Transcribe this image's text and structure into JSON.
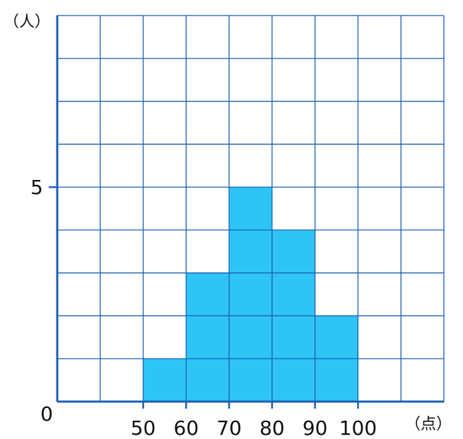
{
  "chart_data": {
    "type": "bar",
    "subtype": "histogram",
    "categories": [
      "50-60",
      "60-70",
      "70-80",
      "80-90",
      "90-100"
    ],
    "bins": [
      [
        50,
        60
      ],
      [
        60,
        70
      ],
      [
        70,
        80
      ],
      [
        80,
        90
      ],
      [
        90,
        100
      ]
    ],
    "values": [
      1,
      3,
      5,
      4,
      2
    ],
    "title": "",
    "ylabel": "（人）",
    "xlabel": "（点）",
    "y_tick_labels": [
      "0",
      "5"
    ],
    "x_tick_labels": [
      "50",
      "60",
      "70",
      "80",
      "90",
      "100"
    ],
    "xlim": [
      30,
      120
    ],
    "ylim": [
      0,
      9
    ],
    "grid": true,
    "bar_color": "#2ec5f5",
    "grid_color": "#1a5fb4"
  }
}
